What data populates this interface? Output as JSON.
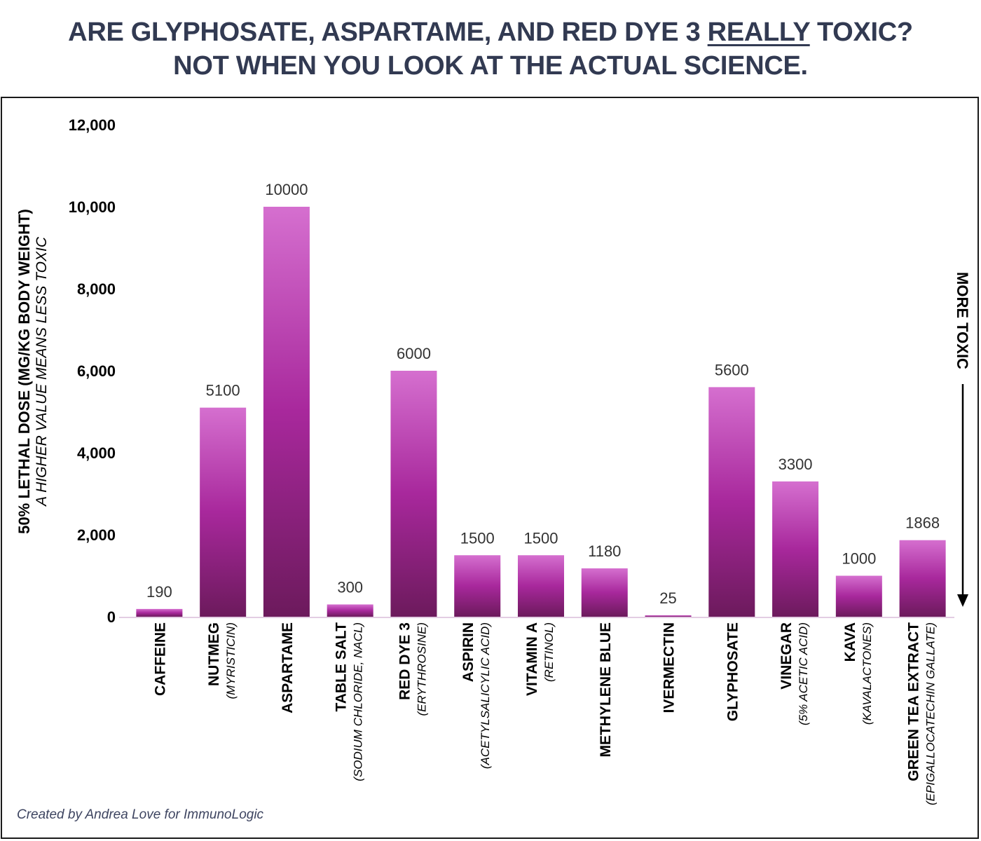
{
  "title": {
    "line1_a": "ARE GLYPHOSATE, ASPARTAME, AND RED DYE 3 ",
    "line1_u": "REALLY",
    "line1_b": " TOXIC?",
    "line2": "NOT WHEN YOU LOOK AT THE ACTUAL SCIENCE."
  },
  "credit": "Created by Andrea Love for ImmunoLogic",
  "colors": {
    "bar_top": "#d56fcf",
    "bar_mid": "#a8289c",
    "bar_bottom": "#6c1a5c",
    "title": "#323a52"
  },
  "chart_data": {
    "type": "bar",
    "ylabel": "50% LETHAL DOSE (MG/KG BODY WEIGHT)",
    "ylabel_sub": "A HIGHER VALUE MEANS LESS TOXIC",
    "ylim": [
      0,
      12000
    ],
    "yticks": [
      0,
      2000,
      4000,
      6000,
      8000,
      10000,
      12000
    ],
    "ytick_labels": [
      "0",
      "2,000",
      "4,000",
      "6,000",
      "8,000",
      "10,000",
      "12,000"
    ],
    "arrow_label": "MORE TOXIC",
    "categories": [
      {
        "name": "CAFFEINE",
        "sub": ""
      },
      {
        "name": "NUTMEG",
        "sub": "(MYRISTICIN)"
      },
      {
        "name": "ASPARTAME",
        "sub": ""
      },
      {
        "name": "TABLE SALT",
        "sub": "(SODIUM CHLORIDE, NACL)"
      },
      {
        "name": "RED DYE 3",
        "sub": "(ERYTHROSINE)"
      },
      {
        "name": "ASPIRIN",
        "sub": "(ACETYLSALICYLIC ACID)"
      },
      {
        "name": "VITAMIN A",
        "sub": "(RETINOL)"
      },
      {
        "name": "METHYLENE BLUE",
        "sub": ""
      },
      {
        "name": "IVERMECTIN",
        "sub": ""
      },
      {
        "name": "GLYPHOSATE",
        "sub": ""
      },
      {
        "name": "VINEGAR",
        "sub": "(5% ACETIC ACID)"
      },
      {
        "name": "KAVA",
        "sub": "(KAVALACTONES)"
      },
      {
        "name": "GREEN TEA EXTRACT",
        "sub": "(EPIGALLOCATECHIN GALLATE)"
      }
    ],
    "values": [
      190,
      5100,
      10000,
      300,
      6000,
      1500,
      1500,
      1180,
      25,
      5600,
      3300,
      1000,
      1868
    ]
  }
}
